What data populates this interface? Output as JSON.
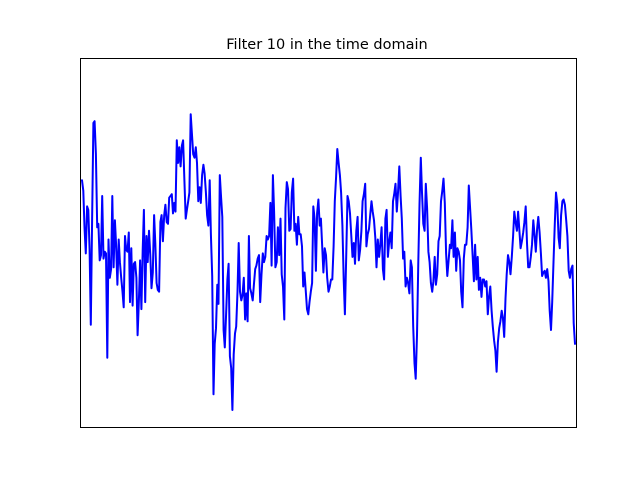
{
  "chart_data": {
    "type": "line",
    "title": "Filter 10 in the time domain",
    "xlabel": "",
    "ylabel": "",
    "show_ticks": false,
    "grid": false,
    "legend": "none",
    "xlim": [
      0,
      399
    ],
    "ylim": [
      -1.0,
      1.0
    ],
    "series": [
      {
        "color": "#0000ff",
        "values": [
          0.32,
          0.26,
          0.05,
          -0.1,
          0.17,
          0.15,
          -0.08,
          -0.51,
          0.09,
          0.65,
          0.66,
          0.47,
          0.05,
          0.07,
          -0.14,
          -0.11,
          0.23,
          -0.13,
          -0.09,
          -0.1,
          -0.7,
          -0.02,
          -0.24,
          -0.19,
          0.23,
          -0.18,
          0.09,
          -0.05,
          -0.28,
          -0.02,
          -0.15,
          -0.24,
          -0.32,
          -0.41,
          0.0,
          -0.08,
          -0.09,
          0.02,
          -0.38,
          -0.07,
          -0.4,
          -0.16,
          -0.15,
          -0.24,
          -0.57,
          -0.37,
          -0.14,
          -0.42,
          -0.08,
          0.15,
          -0.38,
          0.0,
          -0.15,
          0.03,
          -0.11,
          -0.3,
          -0.21,
          0.12,
          -0.04,
          -0.27,
          -0.31,
          -0.32,
          0.08,
          0.12,
          -0.03,
          0.12,
          0.18,
          0.08,
          0.07,
          0.22,
          0.23,
          0.24,
          0.13,
          0.19,
          0.14,
          0.55,
          0.42,
          0.51,
          0.4,
          0.52,
          0.55,
          0.32,
          0.1,
          0.15,
          0.2,
          0.25,
          0.7,
          0.58,
          0.47,
          0.45,
          0.51,
          0.42,
          0.2,
          0.28,
          0.19,
          0.35,
          0.41,
          0.36,
          0.25,
          0.12,
          0.06,
          0.32,
          0.01,
          -0.23,
          -0.91,
          -0.62,
          -0.53,
          -0.28,
          -0.39,
          0.35,
          0.22,
          0.11,
          -0.54,
          -0.64,
          -0.45,
          -0.25,
          -0.16,
          -0.69,
          -0.76,
          -1.0,
          -0.68,
          -0.56,
          -0.52,
          -0.32,
          -0.04,
          -0.32,
          -0.37,
          -0.34,
          -0.24,
          -0.48,
          -0.33,
          -0.49,
          0.0,
          -0.3,
          -0.33,
          -0.37,
          -0.28,
          -0.19,
          -0.17,
          -0.13,
          -0.11,
          -0.38,
          -0.22,
          -0.1,
          -0.15,
          -0.12,
          0.0,
          -0.02,
          0.0,
          0.19,
          -0.17,
          0.35,
          0.14,
          -0.18,
          -0.15,
          0.05,
          -0.11,
          0.1,
          -0.22,
          -0.29,
          -0.48,
          0.16,
          0.31,
          0.27,
          0.03,
          0.04,
          0.25,
          0.33,
          0.03,
          0.07,
          -0.05,
          0.11,
          0.01,
          0.01,
          -0.06,
          -0.29,
          -0.21,
          -0.31,
          -0.42,
          -0.45,
          -0.38,
          -0.32,
          -0.27,
          0.17,
          0.1,
          -0.2,
          0.13,
          0.21,
          0.06,
          0.1,
          -0.06,
          -0.21,
          -0.07,
          -0.11,
          -0.24,
          -0.32,
          -0.29,
          -0.25,
          -0.25,
          -0.06,
          0.2,
          0.34,
          0.5,
          0.42,
          0.35,
          0.25,
          0.06,
          -0.25,
          -0.45,
          -0.12,
          0.23,
          0.2,
          0.13,
          0.0,
          -0.12,
          -0.04,
          -0.16,
          0.03,
          0.11,
          -0.14,
          -0.08,
          0.03,
          0.2,
          0.24,
          0.3,
          -0.06,
          0.01,
          0.04,
          0.12,
          0.2,
          0.14,
          0.09,
          -0.01,
          -0.18,
          -0.02,
          -0.12,
          -0.05,
          0.05,
          -0.19,
          -0.25,
          0.1,
          0.15,
          -0.12,
          -0.03,
          0.02,
          -0.07,
          0.2,
          0.24,
          0.3,
          0.14,
          0.25,
          0.4,
          0.23,
          0.1,
          -0.13,
          -0.09,
          -0.29,
          -0.24,
          -0.27,
          -0.33,
          -0.14,
          -0.18,
          -0.52,
          -0.73,
          -0.82,
          -0.57,
          -0.15,
          0.18,
          0.45,
          0.25,
          0.07,
          0.03,
          0.3,
          0.16,
          -0.09,
          -0.15,
          -0.27,
          -0.32,
          -0.26,
          -0.12,
          -0.28,
          -0.22,
          -0.03,
          0.0,
          0.2,
          0.26,
          0.33,
          0.19,
          -0.1,
          -0.23,
          -0.14,
          -0.05,
          -0.07,
          0.09,
          -0.12,
          0.02,
          -0.2,
          -0.07,
          -0.09,
          -0.14,
          -0.32,
          -0.41,
          -0.13,
          -0.05,
          -0.05,
          0.05,
          0.29,
          0.16,
          0.04,
          -0.11,
          -0.26,
          -0.05,
          -0.25,
          -0.12,
          -0.31,
          -0.24,
          -0.35,
          -0.25,
          -0.25,
          -0.29,
          -0.26,
          -0.45,
          -0.35,
          -0.29,
          -0.43,
          -0.52,
          -0.6,
          -0.66,
          -0.78,
          -0.61,
          -0.53,
          -0.49,
          -0.43,
          -0.47,
          -0.58,
          -0.36,
          -0.22,
          -0.11,
          -0.15,
          -0.22,
          -0.12,
          0.0,
          0.14,
          0.08,
          0.03,
          0.14,
          0.03,
          -0.07,
          -0.03,
          0.02,
          0.08,
          0.17,
          -0.04,
          -0.18,
          -0.18,
          -0.12,
          -0.05,
          0.09,
          0.01,
          -0.09,
          0.04,
          0.11,
          0.02,
          -0.1,
          -0.23,
          -0.21,
          -0.2,
          -0.24,
          -0.19,
          -0.26,
          -0.43,
          -0.54,
          -0.38,
          -0.15,
          0.07,
          0.25,
          0.18,
          -0.01,
          -0.07,
          0.12,
          0.2,
          0.21,
          0.18,
          0.09,
          0.0,
          -0.2,
          -0.24,
          -0.19,
          -0.17,
          -0.5,
          -0.62
        ]
      }
    ]
  }
}
